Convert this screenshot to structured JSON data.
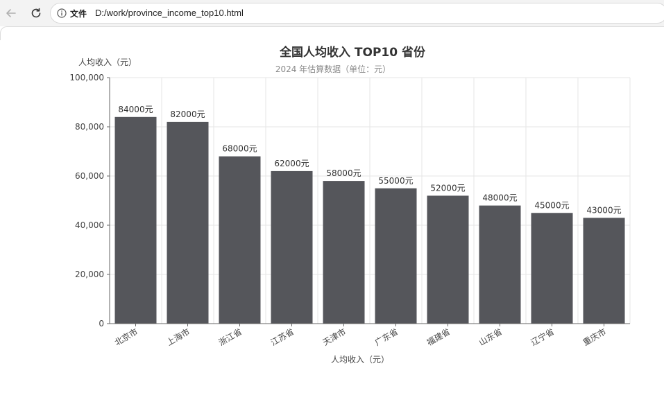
{
  "browser": {
    "back_icon": "back-arrow-icon",
    "reload_icon": "reload-icon",
    "info_icon": "info-icon",
    "scheme_label": "文件",
    "url": "D:/work/province_income_top10.html"
  },
  "chart_data": {
    "type": "bar",
    "title": "全国人均收入 TOP10 省份",
    "subtitle": "2024 年估算数据（单位：元）",
    "ylabel": "人均收入（元）",
    "xlabel": "人均收入（元）",
    "categories": [
      "北京市",
      "上海市",
      "浙江省",
      "江苏省",
      "天津市",
      "广东省",
      "福建省",
      "山东省",
      "辽宁省",
      "重庆市"
    ],
    "values": [
      84000,
      82000,
      68000,
      62000,
      58000,
      55000,
      52000,
      48000,
      45000,
      43000
    ],
    "value_labels": [
      "84000元",
      "82000元",
      "68000元",
      "62000元",
      "58000元",
      "55000元",
      "52000元",
      "48000元",
      "45000元",
      "43000元"
    ],
    "ylim": [
      0,
      100000
    ],
    "yticks": [
      0,
      20000,
      40000,
      60000,
      80000,
      100000
    ],
    "ytick_labels": [
      "0",
      "20,000",
      "40,000",
      "60,000",
      "80,000",
      "100,000"
    ],
    "grid": true,
    "bar_color": "#55565b"
  }
}
